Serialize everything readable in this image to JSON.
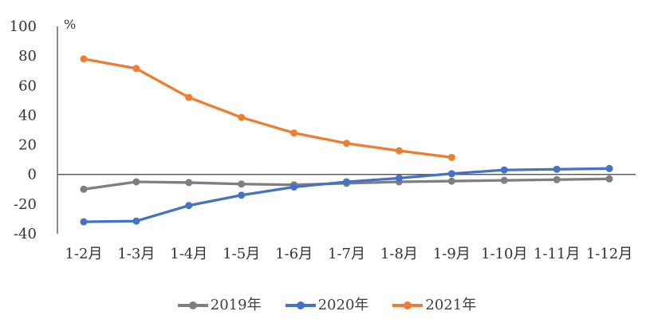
{
  "chart_data": {
    "type": "line",
    "title": "",
    "unit_label": "%",
    "categories": [
      "1-2月",
      "1-3月",
      "1-4月",
      "1-5月",
      "1-6月",
      "1-7月",
      "1-8月",
      "1-9月",
      "1-10月",
      "1-11月",
      "1-12月"
    ],
    "series": [
      {
        "name": "2019年",
        "color": "#7F7F7F",
        "values": [
          -10,
          -5,
          -5.5,
          -6.5,
          -7,
          -6,
          -5,
          -4.5,
          -4,
          -3.5,
          -3
        ]
      },
      {
        "name": "2020年",
        "color": "#4472C4",
        "values": [
          -32,
          -31.5,
          -21,
          -14,
          -8.5,
          -5,
          -2.5,
          0.5,
          3,
          3.5,
          4
        ]
      },
      {
        "name": "2021年",
        "color": "#ED7D31",
        "values": [
          78,
          71.5,
          52,
          38.5,
          28,
          21,
          16,
          11.5,
          null,
          null,
          null
        ]
      }
    ],
    "yticks": [
      100,
      80,
      60,
      40,
      20,
      0,
      -20,
      -40
    ],
    "ylim": [
      -40,
      100
    ],
    "xlabel": "",
    "ylabel": "",
    "grid": false,
    "legend_position": "bottom",
    "axis_color": "#595959",
    "zero_line_color": "#404040",
    "label_color": "#333333"
  }
}
